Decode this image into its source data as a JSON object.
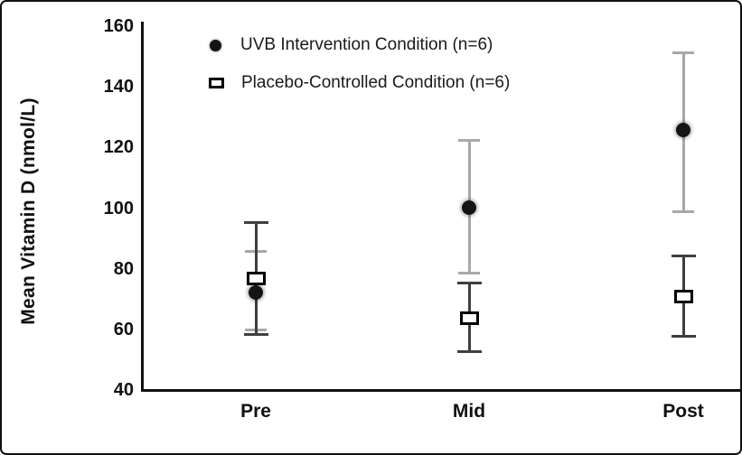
{
  "figure": {
    "background": "#ffffff",
    "frame_color": "#111111"
  },
  "chart_data": {
    "type": "scatter",
    "title": "",
    "xlabel": "",
    "ylabel": "Mean Vitamin D (nmol/L)",
    "categories": [
      "Pre",
      "Mid",
      "Post"
    ],
    "ylim": [
      40,
      160
    ],
    "yticks": [
      160,
      140,
      120,
      100,
      80,
      60,
      40
    ],
    "grid": false,
    "legend_position": "top-left-inside",
    "series": [
      {
        "name": "UVB Intervention Condition (n=6)",
        "marker": "filled-circle",
        "marker_color": "#141414",
        "error_bar_color": "#a8a8a8",
        "values": [
          72.5,
          100.5,
          126
        ],
        "error_upper": [
          86,
          122.5,
          151.5
        ],
        "error_lower": [
          60,
          79,
          99
        ]
      },
      {
        "name": "Placebo-Controlled Condition (n=6)",
        "marker": "open-square",
        "marker_color": "#000000",
        "error_bar_color": "#3f3f3f",
        "values": [
          77,
          64,
          71
        ],
        "error_upper": [
          95.5,
          75.5,
          84.5
        ],
        "error_lower": [
          58.5,
          53,
          58
        ]
      }
    ]
  }
}
